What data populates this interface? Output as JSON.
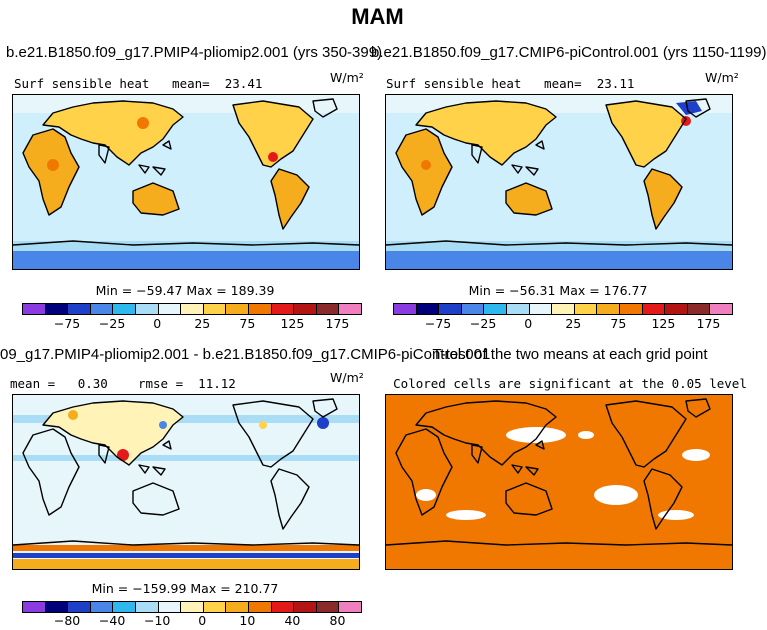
{
  "title": "MAM",
  "top_left": {
    "run": "b.e21.B1850.f09_g17.PMIP4-pliomip2.001 (yrs 350-399)",
    "variable": "Surf  sensible  heat",
    "mean_label": "mean=",
    "mean_value": "23.41",
    "units": "W/m²",
    "min_max": "Min = −59.47 Max = 189.39"
  },
  "top_right": {
    "run": "b.e21.B1850.f09_g17.CMIP6-piControl.001 (yrs 1150-1199)",
    "variable": "Surf  sensible  heat",
    "mean_label": "mean=",
    "mean_value": "23.11",
    "units": "W/m²",
    "min_max": "Min = −56.31 Max = 176.77"
  },
  "bottom_left": {
    "run": "09_g17.PMIP4-pliomip2.001 - b.e21.B1850.f09_g17.CMIP6-piControl.001",
    "mean_label": "mean =",
    "mean_value": "0.30",
    "rmse_label": "rmse =",
    "rmse_value": "11.12",
    "units": "W/m²",
    "min_max": "Min = −159.99 Max = 210.77"
  },
  "bottom_right": {
    "title": "T-test of the two means at each grid point",
    "subtitle": "Colored cells are significant at the 0.05 level",
    "significant_color": "#f07800"
  },
  "colorbar_abs": {
    "colors": [
      "#8b3ce0",
      "#00007a",
      "#1e3fc8",
      "#4a86e8",
      "#2fb8ee",
      "#a9ddf5",
      "#e6f6fb",
      "#fff3b8",
      "#ffd24a",
      "#f5ad1e",
      "#f07800",
      "#e41a1a",
      "#b31515",
      "#8b2a2a",
      "#f07fc0"
    ],
    "ticks": [
      "−75",
      "−25",
      "0",
      "25",
      "75",
      "125",
      "175"
    ]
  },
  "colorbar_diff": {
    "colors": [
      "#8b3ce0",
      "#00007a",
      "#1e3fc8",
      "#4a86e8",
      "#2fb8ee",
      "#a9ddf5",
      "#e6f6fb",
      "#fff3b8",
      "#ffd24a",
      "#f5ad1e",
      "#f07800",
      "#e41a1a",
      "#b31515",
      "#8b2a2a",
      "#f07fc0"
    ],
    "ticks": [
      "−80",
      "−40",
      "−10",
      "0",
      "10",
      "40",
      "80"
    ]
  }
}
